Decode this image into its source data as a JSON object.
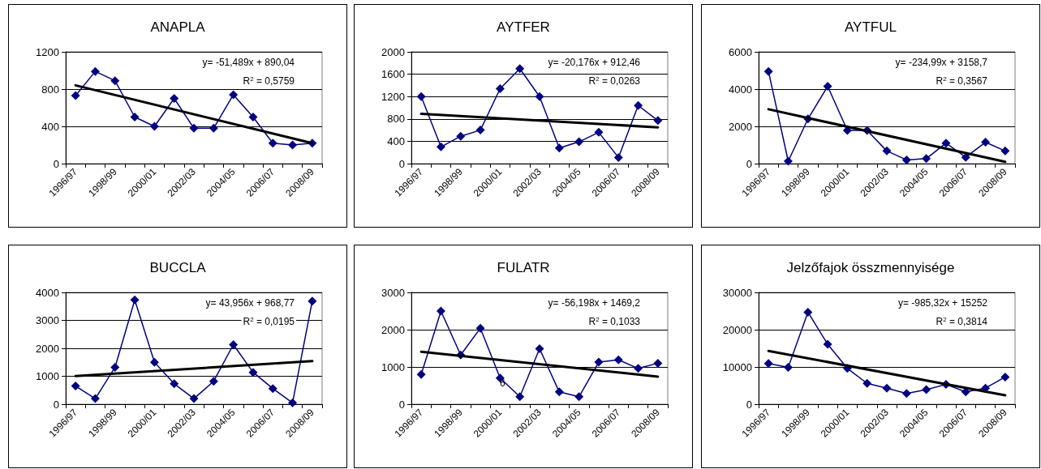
{
  "chart_data": [
    {
      "type": "line",
      "title": "ANAPLA",
      "categories": [
        "1996/97",
        null,
        "1998/99",
        null,
        "2000/01",
        null,
        "2002/03",
        null,
        "2004/05",
        null,
        "2006/07",
        null,
        "2008/09"
      ],
      "ylim": [
        0,
        1200
      ],
      "yticks": [
        0,
        400,
        800,
        1200
      ],
      "grid": "y",
      "marker": "diamond",
      "series": [
        {
          "color": "#000080",
          "values": [
            730,
            990,
            890,
            500,
            400,
            700,
            380,
            380,
            740,
            500,
            220,
            200,
            220
          ]
        },
        {
          "type": "line",
          "color": "#000000",
          "marker": "none",
          "x": [
            "1996/97",
            "2008/09"
          ],
          "values": [
            840,
            220
          ]
        }
      ],
      "annotations": [
        "y= -51,489x + 890,04",
        "R$^{2}$ = 0,5759"
      ]
    },
    {
      "type": "line",
      "title": "AYTFER",
      "categories": [
        "1996/97",
        null,
        "1998/99",
        null,
        "2000/01",
        null,
        "2002/03",
        null,
        "2004/05",
        null,
        "2006/07",
        null,
        "2008/09"
      ],
      "ylim": [
        0,
        2000
      ],
      "yticks": [
        0,
        400,
        800,
        1200,
        1600,
        2000
      ],
      "grid": "y",
      "marker": "diamond",
      "series": [
        {
          "color": "#000080",
          "values": [
            1200,
            300,
            490,
            600,
            1340,
            1700,
            1200,
            280,
            390,
            560,
            110,
            1040,
            770
          ]
        },
        {
          "type": "line",
          "color": "#000000",
          "marker": "none",
          "x": [
            "1996/97",
            "2008/09"
          ],
          "values": [
            890,
            650
          ]
        }
      ],
      "annotations": [
        "y= -20,176x + 912,46",
        "R$^{2}$ = 0,0263"
      ]
    },
    {
      "type": "line",
      "title": "AYTFUL",
      "categories": [
        "1996/97",
        null,
        "1998/99",
        null,
        "2000/01",
        null,
        "2002/03",
        null,
        "2004/05",
        null,
        "2006/07",
        null,
        "2008/09"
      ],
      "ylim": [
        0,
        6000
      ],
      "yticks": [
        0,
        2000,
        4000,
        6000
      ],
      "grid": "y",
      "marker": "diamond",
      "series": [
        {
          "color": "#000080",
          "values": [
            4950,
            130,
            2400,
            4150,
            1780,
            1780,
            680,
            200,
            270,
            1100,
            340,
            1150,
            680
          ]
        },
        {
          "type": "line",
          "color": "#000000",
          "marker": "none",
          "x": [
            "1996/97",
            "2008/09"
          ],
          "values": [
            2920,
            100
          ]
        }
      ],
      "annotations": [
        "y= -234,99x + 3158,7",
        "R$^{2}$ = 0,3567"
      ]
    },
    {
      "type": "line",
      "title": "BUCCLA",
      "categories": [
        "1996/97",
        null,
        "1998/99",
        null,
        "2000/01",
        null,
        "2002/03",
        null,
        "2004/05",
        null,
        "2006/07",
        null,
        "2008/09"
      ],
      "ylim": [
        0,
        4000
      ],
      "yticks": [
        0,
        1000,
        2000,
        3000,
        4000
      ],
      "grid": "y",
      "marker": "diamond",
      "series": [
        {
          "color": "#000080",
          "values": [
            650,
            200,
            1320,
            3730,
            1500,
            730,
            200,
            820,
            2130,
            1140,
            560,
            50,
            3690
          ]
        },
        {
          "type": "line",
          "color": "#000000",
          "marker": "none",
          "x": [
            "1996/97",
            "2008/09"
          ],
          "values": [
            1010,
            1540
          ]
        }
      ],
      "annotations": [
        "y= 43,956x + 968,77",
        "R$^{2}$ = 0,0195"
      ]
    },
    {
      "type": "line",
      "title": "FULATR",
      "categories": [
        "1996/97",
        null,
        "1998/99",
        null,
        "2000/01",
        null,
        "2002/03",
        null,
        "2004/05",
        null,
        "2006/07",
        null,
        "2008/09"
      ],
      "ylim": [
        0,
        3000
      ],
      "yticks": [
        0,
        1000,
        2000,
        3000
      ],
      "grid": "y",
      "marker": "diamond",
      "series": [
        {
          "color": "#000080",
          "values": [
            800,
            2500,
            1320,
            2040,
            700,
            200,
            1490,
            330,
            200,
            1130,
            1190,
            960,
            1100
          ]
        },
        {
          "type": "line",
          "color": "#000000",
          "marker": "none",
          "x": [
            "1996/97",
            "2008/09"
          ],
          "values": [
            1410,
            740
          ]
        }
      ],
      "annotations": [
        "y= -56,198x + 1469,2",
        "R$^{2}$ = 0,1033",
        "6"
      ]
    },
    {
      "type": "line",
      "title": "Jelzőfajok összmennyisége",
      "categories": [
        "1996/97",
        null,
        "1998/99",
        null,
        "2000/01",
        null,
        "2002/03",
        null,
        "2004/05",
        null,
        "2006/07",
        null,
        "2008/09"
      ],
      "ylim": [
        0,
        30000
      ],
      "yticks": [
        0,
        10000,
        20000,
        30000
      ],
      "grid": "y",
      "marker": "diamond",
      "series": [
        {
          "color": "#000080",
          "values": [
            10900,
            9900,
            24700,
            16100,
            9600,
            5600,
            4300,
            2900,
            3900,
            5300,
            3300,
            4300,
            7300
          ]
        },
        {
          "type": "line",
          "color": "#000000",
          "marker": "none",
          "x": [
            "1996/97",
            "2008/09"
          ],
          "values": [
            14300,
            2400
          ]
        }
      ],
      "annotations": [
        "y= -985,32x + 15252",
        "R$^{2}$ = 0,3814"
      ]
    }
  ]
}
